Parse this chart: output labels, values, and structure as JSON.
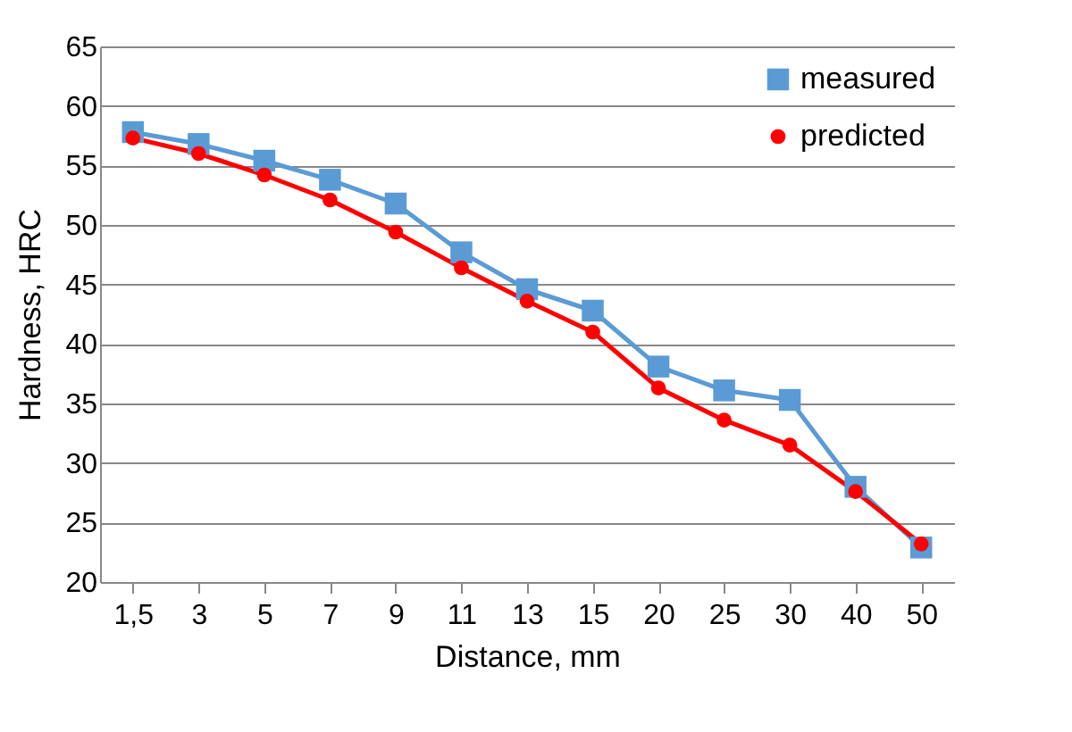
{
  "chart_data": {
    "type": "line",
    "xlabel": "Distance, mm",
    "ylabel": "Hardness, HRC",
    "categories": [
      "1,5",
      "3",
      "5",
      "7",
      "9",
      "11",
      "13",
      "15",
      "20",
      "25",
      "30",
      "40",
      "50"
    ],
    "series": [
      {
        "name": "measured",
        "color": "#5b9bd5",
        "marker": "square",
        "values": [
          57.8,
          56.8,
          55.4,
          53.8,
          51.8,
          47.7,
          44.6,
          42.8,
          38.1,
          36.1,
          35.3,
          28,
          22.9
        ]
      },
      {
        "name": "predicted",
        "color": "#ff0000",
        "marker": "circle",
        "values": [
          57.3,
          56,
          54.2,
          52.1,
          49.4,
          46.4,
          43.6,
          41,
          36.3,
          33.6,
          31.5,
          27.6,
          23.2
        ]
      }
    ],
    "ylim": [
      20,
      65
    ],
    "yticks": [
      20,
      25,
      30,
      35,
      40,
      45,
      50,
      55,
      60,
      65
    ],
    "grid": "y",
    "legend": "top right",
    "line_style": "solid"
  }
}
